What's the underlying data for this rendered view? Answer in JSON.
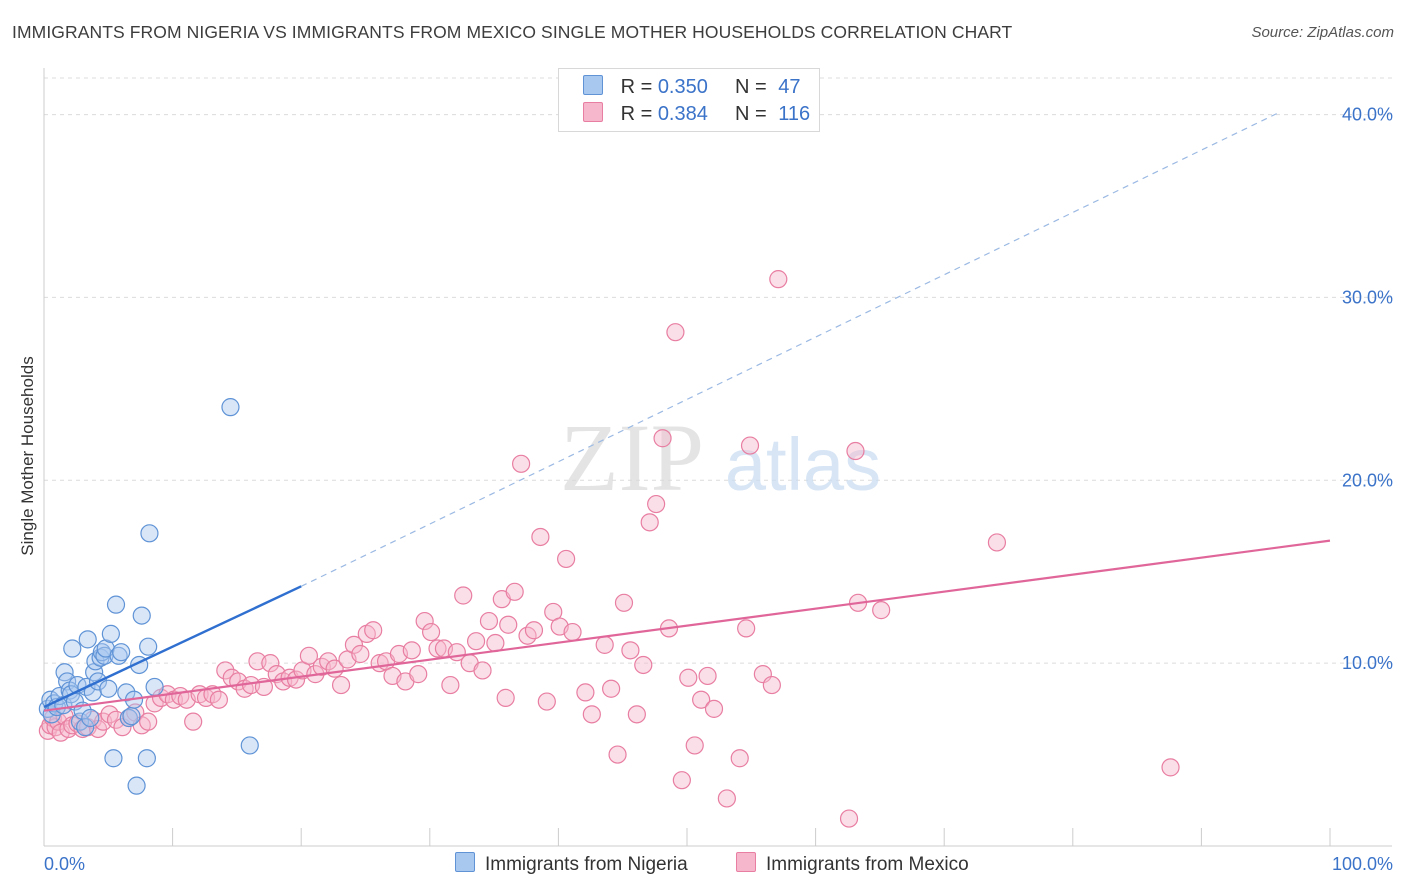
{
  "title": "IMMIGRANTS FROM NIGERIA VS IMMIGRANTS FROM MEXICO SINGLE MOTHER HOUSEHOLDS CORRELATION CHART",
  "source": "Source: ZipAtlas.com",
  "watermark": {
    "zip": "ZIP",
    "atlas": "atlas"
  },
  "legend": {
    "rows": [
      {
        "r_label": "R =",
        "r_value": "0.350",
        "n_label": "N =",
        "n_value": "47",
        "color": "#a9c8f0"
      },
      {
        "r_label": "R =",
        "r_value": "0.384",
        "n_label": "N =",
        "n_value": "116",
        "color": "#f6b7cc"
      }
    ]
  },
  "colors": {
    "nigeria_fill": "#a9c8f0",
    "nigeria_stroke": "#5f93d6",
    "nigeria_line": "#2f6fcf",
    "mexico_fill": "#f6b7cc",
    "mexico_stroke": "#e87ea1",
    "mexico_line": "#e0669a",
    "tick_label": "#3b73c9",
    "grid": "#dcdcdc"
  },
  "chart_data": {
    "type": "scatter",
    "title": "IMMIGRANTS FROM NIGERIA VS IMMIGRANTS FROM MEXICO SINGLE MOTHER HOUSEHOLDS CORRELATION CHART",
    "xlabel": "",
    "ylabel": "Single Mother Households",
    "xlim": [
      0,
      100
    ],
    "ylim": [
      0,
      42
    ],
    "x_tick_labels": [
      {
        "value": 0,
        "label": "0.0%"
      },
      {
        "value": 100,
        "label": "100.0%"
      }
    ],
    "y_tick_labels": [
      {
        "value": 10,
        "label": "10.0%"
      },
      {
        "value": 20,
        "label": "20.0%"
      },
      {
        "value": 30,
        "label": "30.0%"
      },
      {
        "value": 40,
        "label": "40.0%"
      }
    ],
    "grid": true,
    "legend_position": "top-center",
    "series": [
      {
        "name": "Immigrants from Nigeria",
        "points": [
          [
            0.3,
            7.5
          ],
          [
            0.5,
            8.0
          ],
          [
            0.6,
            7.2
          ],
          [
            0.8,
            7.8
          ],
          [
            1.0,
            7.6
          ],
          [
            1.2,
            8.2
          ],
          [
            1.5,
            7.7
          ],
          [
            1.6,
            9.5
          ],
          [
            1.8,
            9.0
          ],
          [
            2.0,
            8.5
          ],
          [
            2.1,
            8.3
          ],
          [
            2.2,
            10.8
          ],
          [
            2.4,
            7.9
          ],
          [
            2.6,
            8.8
          ],
          [
            2.8,
            6.8
          ],
          [
            3.0,
            7.4
          ],
          [
            3.2,
            6.5
          ],
          [
            3.3,
            8.7
          ],
          [
            3.4,
            11.3
          ],
          [
            3.6,
            7.0
          ],
          [
            3.8,
            8.4
          ],
          [
            3.9,
            9.5
          ],
          [
            4.0,
            10.1
          ],
          [
            4.2,
            9.0
          ],
          [
            4.4,
            10.3
          ],
          [
            4.5,
            10.6
          ],
          [
            4.7,
            10.4
          ],
          [
            4.8,
            10.8
          ],
          [
            5.0,
            8.6
          ],
          [
            5.2,
            11.6
          ],
          [
            5.4,
            4.8
          ],
          [
            5.6,
            13.2
          ],
          [
            5.8,
            10.4
          ],
          [
            6.0,
            10.6
          ],
          [
            6.4,
            8.4
          ],
          [
            6.6,
            7.0
          ],
          [
            6.8,
            7.1
          ],
          [
            7.0,
            8.0
          ],
          [
            7.2,
            3.3
          ],
          [
            7.4,
            9.9
          ],
          [
            7.6,
            12.6
          ],
          [
            8.0,
            4.8
          ],
          [
            8.1,
            10.9
          ],
          [
            8.2,
            17.1
          ],
          [
            8.6,
            8.7
          ],
          [
            14.5,
            24.0
          ],
          [
            16.0,
            5.5
          ]
        ],
        "trend_line": {
          "solid": [
            [
              0,
              7.6
            ],
            [
              20,
              14.2
            ]
          ],
          "dashed": [
            [
              20,
              14.2
            ],
            [
              96,
              40.1
            ]
          ]
        }
      },
      {
        "name": "Immigrants from Mexico",
        "points": [
          [
            0.3,
            6.3
          ],
          [
            0.5,
            6.6
          ],
          [
            0.7,
            7.0
          ],
          [
            0.9,
            6.5
          ],
          [
            1.1,
            6.8
          ],
          [
            1.3,
            6.2
          ],
          [
            1.6,
            7.1
          ],
          [
            1.9,
            6.4
          ],
          [
            2.2,
            6.6
          ],
          [
            2.6,
            6.7
          ],
          [
            3.0,
            6.4
          ],
          [
            3.4,
            6.5
          ],
          [
            3.8,
            6.9
          ],
          [
            4.2,
            6.4
          ],
          [
            4.6,
            6.8
          ],
          [
            5.1,
            7.2
          ],
          [
            5.6,
            6.9
          ],
          [
            6.1,
            6.5
          ],
          [
            6.6,
            7.0
          ],
          [
            7.1,
            7.3
          ],
          [
            7.6,
            6.6
          ],
          [
            8.1,
            6.8
          ],
          [
            8.6,
            7.8
          ],
          [
            9.1,
            8.1
          ],
          [
            9.6,
            8.3
          ],
          [
            10.1,
            8.0
          ],
          [
            10.6,
            8.2
          ],
          [
            11.1,
            8.0
          ],
          [
            11.6,
            6.8
          ],
          [
            12.1,
            8.3
          ],
          [
            12.6,
            8.1
          ],
          [
            13.1,
            8.3
          ],
          [
            13.6,
            8.0
          ],
          [
            14.1,
            9.6
          ],
          [
            14.6,
            9.2
          ],
          [
            15.1,
            9.0
          ],
          [
            15.6,
            8.6
          ],
          [
            16.1,
            8.8
          ],
          [
            16.6,
            10.1
          ],
          [
            17.1,
            8.7
          ],
          [
            17.6,
            10.0
          ],
          [
            18.1,
            9.4
          ],
          [
            18.6,
            9.0
          ],
          [
            19.1,
            9.2
          ],
          [
            19.6,
            9.1
          ],
          [
            20.1,
            9.6
          ],
          [
            20.6,
            10.4
          ],
          [
            21.1,
            9.4
          ],
          [
            21.6,
            9.8
          ],
          [
            22.1,
            10.1
          ],
          [
            22.6,
            9.7
          ],
          [
            23.1,
            8.8
          ],
          [
            23.6,
            10.2
          ],
          [
            24.1,
            11.0
          ],
          [
            24.6,
            10.5
          ],
          [
            25.1,
            11.6
          ],
          [
            25.6,
            11.8
          ],
          [
            26.1,
            10.0
          ],
          [
            26.6,
            10.1
          ],
          [
            27.1,
            9.3
          ],
          [
            27.6,
            10.5
          ],
          [
            28.1,
            9.0
          ],
          [
            28.6,
            10.7
          ],
          [
            29.1,
            9.4
          ],
          [
            29.6,
            12.3
          ],
          [
            30.1,
            11.7
          ],
          [
            30.6,
            10.8
          ],
          [
            31.1,
            10.8
          ],
          [
            31.6,
            8.8
          ],
          [
            32.1,
            10.6
          ],
          [
            32.6,
            13.7
          ],
          [
            33.1,
            10.0
          ],
          [
            33.6,
            11.2
          ],
          [
            34.1,
            9.6
          ],
          [
            34.6,
            12.3
          ],
          [
            35.1,
            11.1
          ],
          [
            35.6,
            13.5
          ],
          [
            35.9,
            8.1
          ],
          [
            36.1,
            12.1
          ],
          [
            36.6,
            13.9
          ],
          [
            37.1,
            20.9
          ],
          [
            37.6,
            11.5
          ],
          [
            38.1,
            11.8
          ],
          [
            38.6,
            16.9
          ],
          [
            39.1,
            7.9
          ],
          [
            39.6,
            12.8
          ],
          [
            40.1,
            12.0
          ],
          [
            40.6,
            15.7
          ],
          [
            41.1,
            11.7
          ],
          [
            42.1,
            8.4
          ],
          [
            42.6,
            7.2
          ],
          [
            43.6,
            11.0
          ],
          [
            44.1,
            8.6
          ],
          [
            44.6,
            5.0
          ],
          [
            45.1,
            13.3
          ],
          [
            45.6,
            10.7
          ],
          [
            46.1,
            7.2
          ],
          [
            46.6,
            9.9
          ],
          [
            47.1,
            17.7
          ],
          [
            47.6,
            18.7
          ],
          [
            48.1,
            22.3
          ],
          [
            48.6,
            11.9
          ],
          [
            49.1,
            28.1
          ],
          [
            49.6,
            3.6
          ],
          [
            50.1,
            9.2
          ],
          [
            50.6,
            5.5
          ],
          [
            51.1,
            8.0
          ],
          [
            51.6,
            9.3
          ],
          [
            52.1,
            7.5
          ],
          [
            53.1,
            2.6
          ],
          [
            54.1,
            4.8
          ],
          [
            54.6,
            11.9
          ],
          [
            54.9,
            21.9
          ],
          [
            55.9,
            9.4
          ],
          [
            56.6,
            8.8
          ],
          [
            57.1,
            31.0
          ],
          [
            62.6,
            1.5
          ],
          [
            63.1,
            21.6
          ],
          [
            63.3,
            13.3
          ],
          [
            65.1,
            12.9
          ],
          [
            74.1,
            16.6
          ],
          [
            87.6,
            4.3
          ]
        ],
        "trend_line": {
          "solid": [
            [
              0,
              7.4
            ],
            [
              100,
              16.7
            ]
          ]
        }
      }
    ]
  }
}
